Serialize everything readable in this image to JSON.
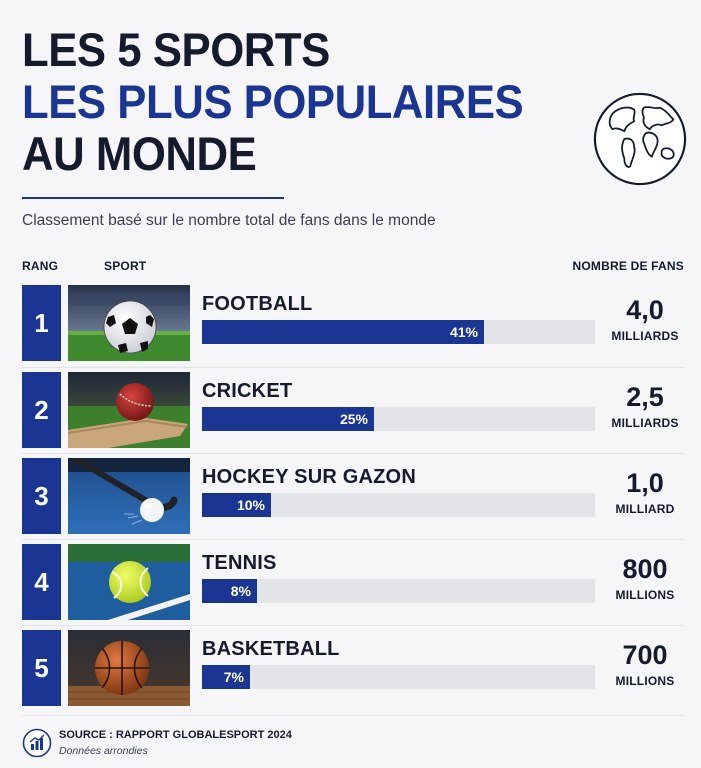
{
  "title": {
    "line1": "LES 5 SPORTS",
    "line2": "LES PLUS POPULAIRES",
    "line3": "AU MONDE"
  },
  "subtitle": "Classement basé sur le nombre total de fans dans le monde",
  "columns": {
    "rank": "RANG",
    "sport": "SPORT",
    "fans": "NOMBRE DE FANS"
  },
  "rows": [
    {
      "rank": "1",
      "sport": "FOOTBALL",
      "share_label": "41%",
      "fans_value": "4,0",
      "fans_unit": "MILLIARDS",
      "image": "soccer-ball-icon"
    },
    {
      "rank": "2",
      "sport": "CRICKET",
      "share_label": "25%",
      "fans_value": "2,5",
      "fans_unit": "MILLIARDS",
      "image": "cricket-ball-icon"
    },
    {
      "rank": "3",
      "sport": "HOCKEY SUR GAZON",
      "share_label": "10%",
      "fans_value": "1,0",
      "fans_unit": "MILLIARD",
      "image": "hockey-stick-icon"
    },
    {
      "rank": "4",
      "sport": "TENNIS",
      "share_label": "8%",
      "fans_value": "800",
      "fans_unit": "MILLIONS",
      "image": "tennis-ball-icon"
    },
    {
      "rank": "5",
      "sport": "BASKETBALL",
      "share_label": "7%",
      "fans_value": "700",
      "fans_unit": "MILLIONS",
      "image": "basketball-icon"
    }
  ],
  "footer": {
    "source": "SOURCE : RAPPORT GLOBALESPORT 2024",
    "note": "Données arrondies"
  },
  "colors": {
    "accent": "#1b3593",
    "dark": "#151a2d",
    "track": "#e3e4e8",
    "background": "#f6f6f8"
  },
  "chart_data": {
    "type": "bar",
    "orientation": "horizontal",
    "categories": [
      "FOOTBALL",
      "CRICKET",
      "HOCKEY SUR GAZON",
      "TENNIS",
      "BASKETBALL"
    ],
    "values": [
      41,
      25,
      10,
      8,
      7
    ],
    "value_labels": [
      "41%",
      "25%",
      "10%",
      "8%",
      "7%"
    ],
    "fans_billions": [
      4.0,
      2.5,
      1.0,
      0.8,
      0.7
    ],
    "title": "LES 5 SPORTS LES PLUS POPULAIRES AU MONDE",
    "subtitle": "Classement basé sur le nombre total de fans dans le monde",
    "xlim": [
      0,
      100
    ],
    "grid": false,
    "legend": "none"
  }
}
